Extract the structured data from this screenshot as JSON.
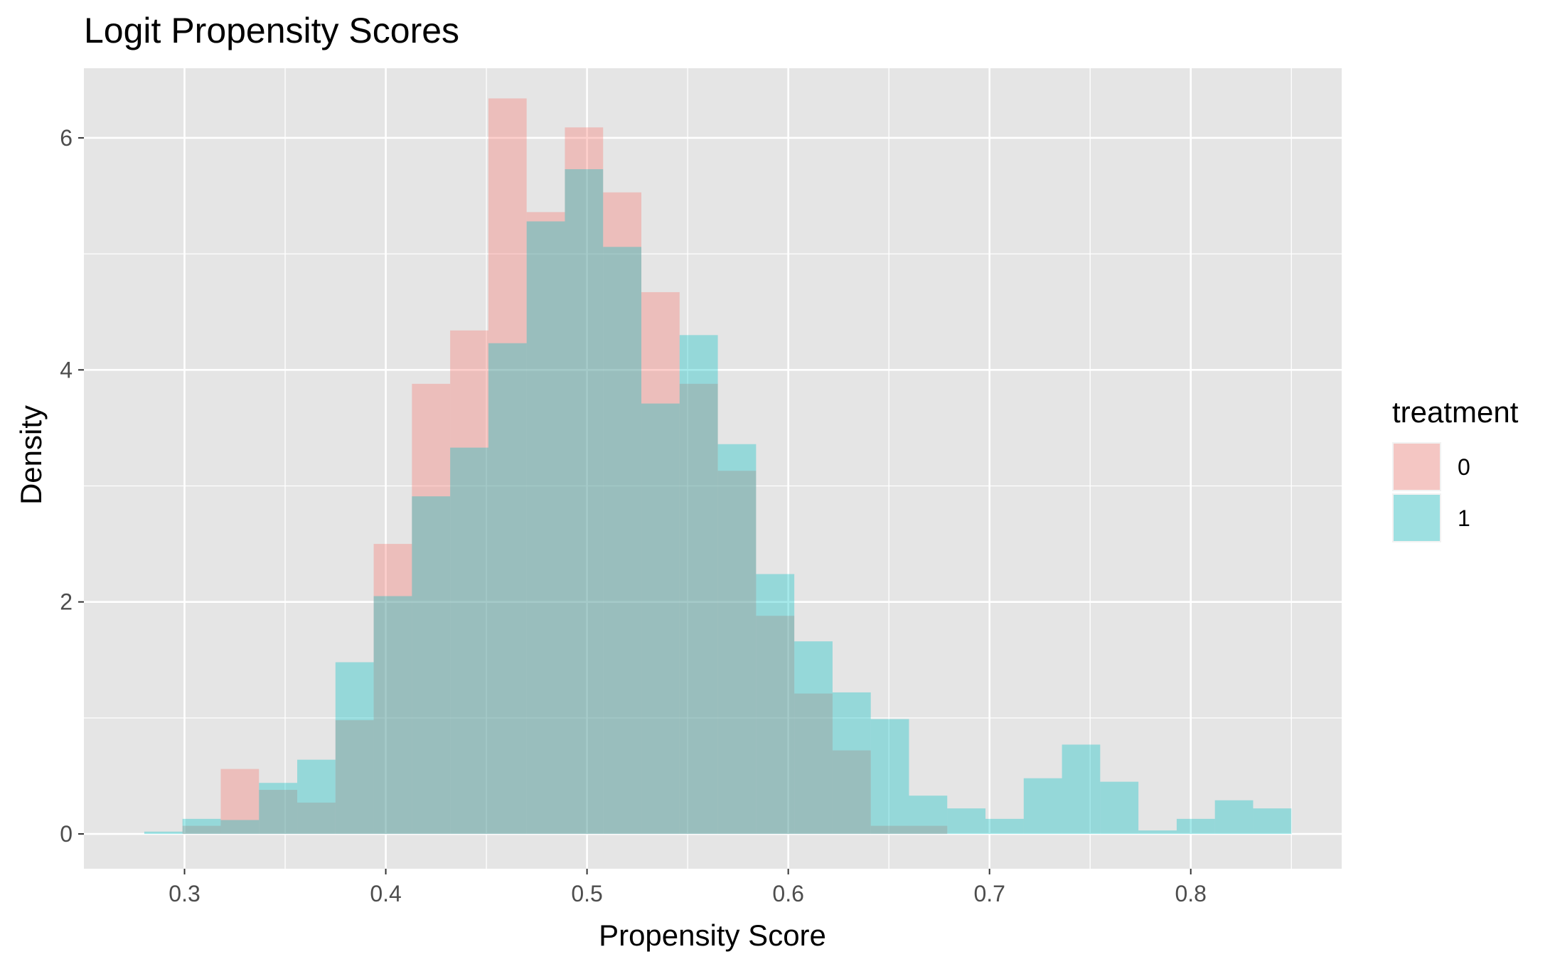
{
  "chart_data": {
    "type": "histogram",
    "title": "Logit Propensity Scores",
    "xlabel": "Propensity Score",
    "ylabel": "Density",
    "xlim": [
      0.25,
      0.875
    ],
    "ylim": [
      -0.3,
      6.6
    ],
    "xticks": [
      0.3,
      0.4,
      0.5,
      0.6,
      0.7,
      0.8
    ],
    "xtick_labels": [
      "0.3",
      "0.4",
      "0.5",
      "0.6",
      "0.7",
      "0.8"
    ],
    "yticks": [
      0,
      2,
      4,
      6
    ],
    "ytick_labels": [
      "0",
      "2",
      "4",
      "6"
    ],
    "grid": true,
    "legend_position": "right",
    "legend_title": "treatment",
    "bin_width": 0.019,
    "series": [
      {
        "name": "0",
        "color": "#F8766D",
        "bins": [
          {
            "x0": 0.299,
            "x1": 0.318,
            "density": 0.07
          },
          {
            "x0": 0.318,
            "x1": 0.337,
            "density": 0.56
          },
          {
            "x0": 0.337,
            "x1": 0.356,
            "density": 0.38
          },
          {
            "x0": 0.356,
            "x1": 0.375,
            "density": 0.27
          },
          {
            "x0": 0.375,
            "x1": 0.394,
            "density": 0.98
          },
          {
            "x0": 0.394,
            "x1": 0.413,
            "density": 2.5
          },
          {
            "x0": 0.413,
            "x1": 0.432,
            "density": 3.88
          },
          {
            "x0": 0.432,
            "x1": 0.451,
            "density": 4.34
          },
          {
            "x0": 0.451,
            "x1": 0.47,
            "density": 6.34
          },
          {
            "x0": 0.47,
            "x1": 0.489,
            "density": 5.36
          },
          {
            "x0": 0.489,
            "x1": 0.508,
            "density": 6.09
          },
          {
            "x0": 0.508,
            "x1": 0.527,
            "density": 5.53
          },
          {
            "x0": 0.527,
            "x1": 0.546,
            "density": 4.67
          },
          {
            "x0": 0.546,
            "x1": 0.565,
            "density": 3.88
          },
          {
            "x0": 0.565,
            "x1": 0.584,
            "density": 3.13
          },
          {
            "x0": 0.584,
            "x1": 0.603,
            "density": 1.88
          },
          {
            "x0": 0.603,
            "x1": 0.622,
            "density": 1.21
          },
          {
            "x0": 0.622,
            "x1": 0.641,
            "density": 0.72
          },
          {
            "x0": 0.641,
            "x1": 0.66,
            "density": 0.07
          },
          {
            "x0": 0.66,
            "x1": 0.679,
            "density": 0.07
          }
        ]
      },
      {
        "name": "1",
        "color": "#00BFC4",
        "bins": [
          {
            "x0": 0.28,
            "x1": 0.299,
            "density": 0.02
          },
          {
            "x0": 0.299,
            "x1": 0.318,
            "density": 0.13
          },
          {
            "x0": 0.318,
            "x1": 0.337,
            "density": 0.12
          },
          {
            "x0": 0.337,
            "x1": 0.356,
            "density": 0.44
          },
          {
            "x0": 0.356,
            "x1": 0.375,
            "density": 0.64
          },
          {
            "x0": 0.375,
            "x1": 0.394,
            "density": 1.48
          },
          {
            "x0": 0.394,
            "x1": 0.413,
            "density": 2.05
          },
          {
            "x0": 0.413,
            "x1": 0.432,
            "density": 2.91
          },
          {
            "x0": 0.432,
            "x1": 0.451,
            "density": 3.33
          },
          {
            "x0": 0.451,
            "x1": 0.47,
            "density": 4.23
          },
          {
            "x0": 0.47,
            "x1": 0.489,
            "density": 5.28
          },
          {
            "x0": 0.489,
            "x1": 0.508,
            "density": 5.73
          },
          {
            "x0": 0.508,
            "x1": 0.527,
            "density": 5.06
          },
          {
            "x0": 0.527,
            "x1": 0.546,
            "density": 3.71
          },
          {
            "x0": 0.546,
            "x1": 0.565,
            "density": 4.3
          },
          {
            "x0": 0.565,
            "x1": 0.584,
            "density": 3.36
          },
          {
            "x0": 0.584,
            "x1": 0.603,
            "density": 2.24
          },
          {
            "x0": 0.603,
            "x1": 0.622,
            "density": 1.66
          },
          {
            "x0": 0.622,
            "x1": 0.641,
            "density": 1.22
          },
          {
            "x0": 0.641,
            "x1": 0.66,
            "density": 0.99
          },
          {
            "x0": 0.66,
            "x1": 0.679,
            "density": 0.33
          },
          {
            "x0": 0.679,
            "x1": 0.698,
            "density": 0.22
          },
          {
            "x0": 0.698,
            "x1": 0.717,
            "density": 0.13
          },
          {
            "x0": 0.717,
            "x1": 0.736,
            "density": 0.48
          },
          {
            "x0": 0.736,
            "x1": 0.755,
            "density": 0.77
          },
          {
            "x0": 0.755,
            "x1": 0.774,
            "density": 0.45
          },
          {
            "x0": 0.774,
            "x1": 0.793,
            "density": 0.03
          },
          {
            "x0": 0.793,
            "x1": 0.812,
            "density": 0.13
          },
          {
            "x0": 0.812,
            "x1": 0.831,
            "density": 0.29
          },
          {
            "x0": 0.831,
            "x1": 0.85,
            "density": 0.22
          }
        ]
      }
    ],
    "colors": {
      "panel_background": "#E5E5E5",
      "grid": "#FFFFFF",
      "tick_text": "#4D4D4D",
      "tick_mark": "#333333"
    },
    "fill_alpha": 0.35
  }
}
